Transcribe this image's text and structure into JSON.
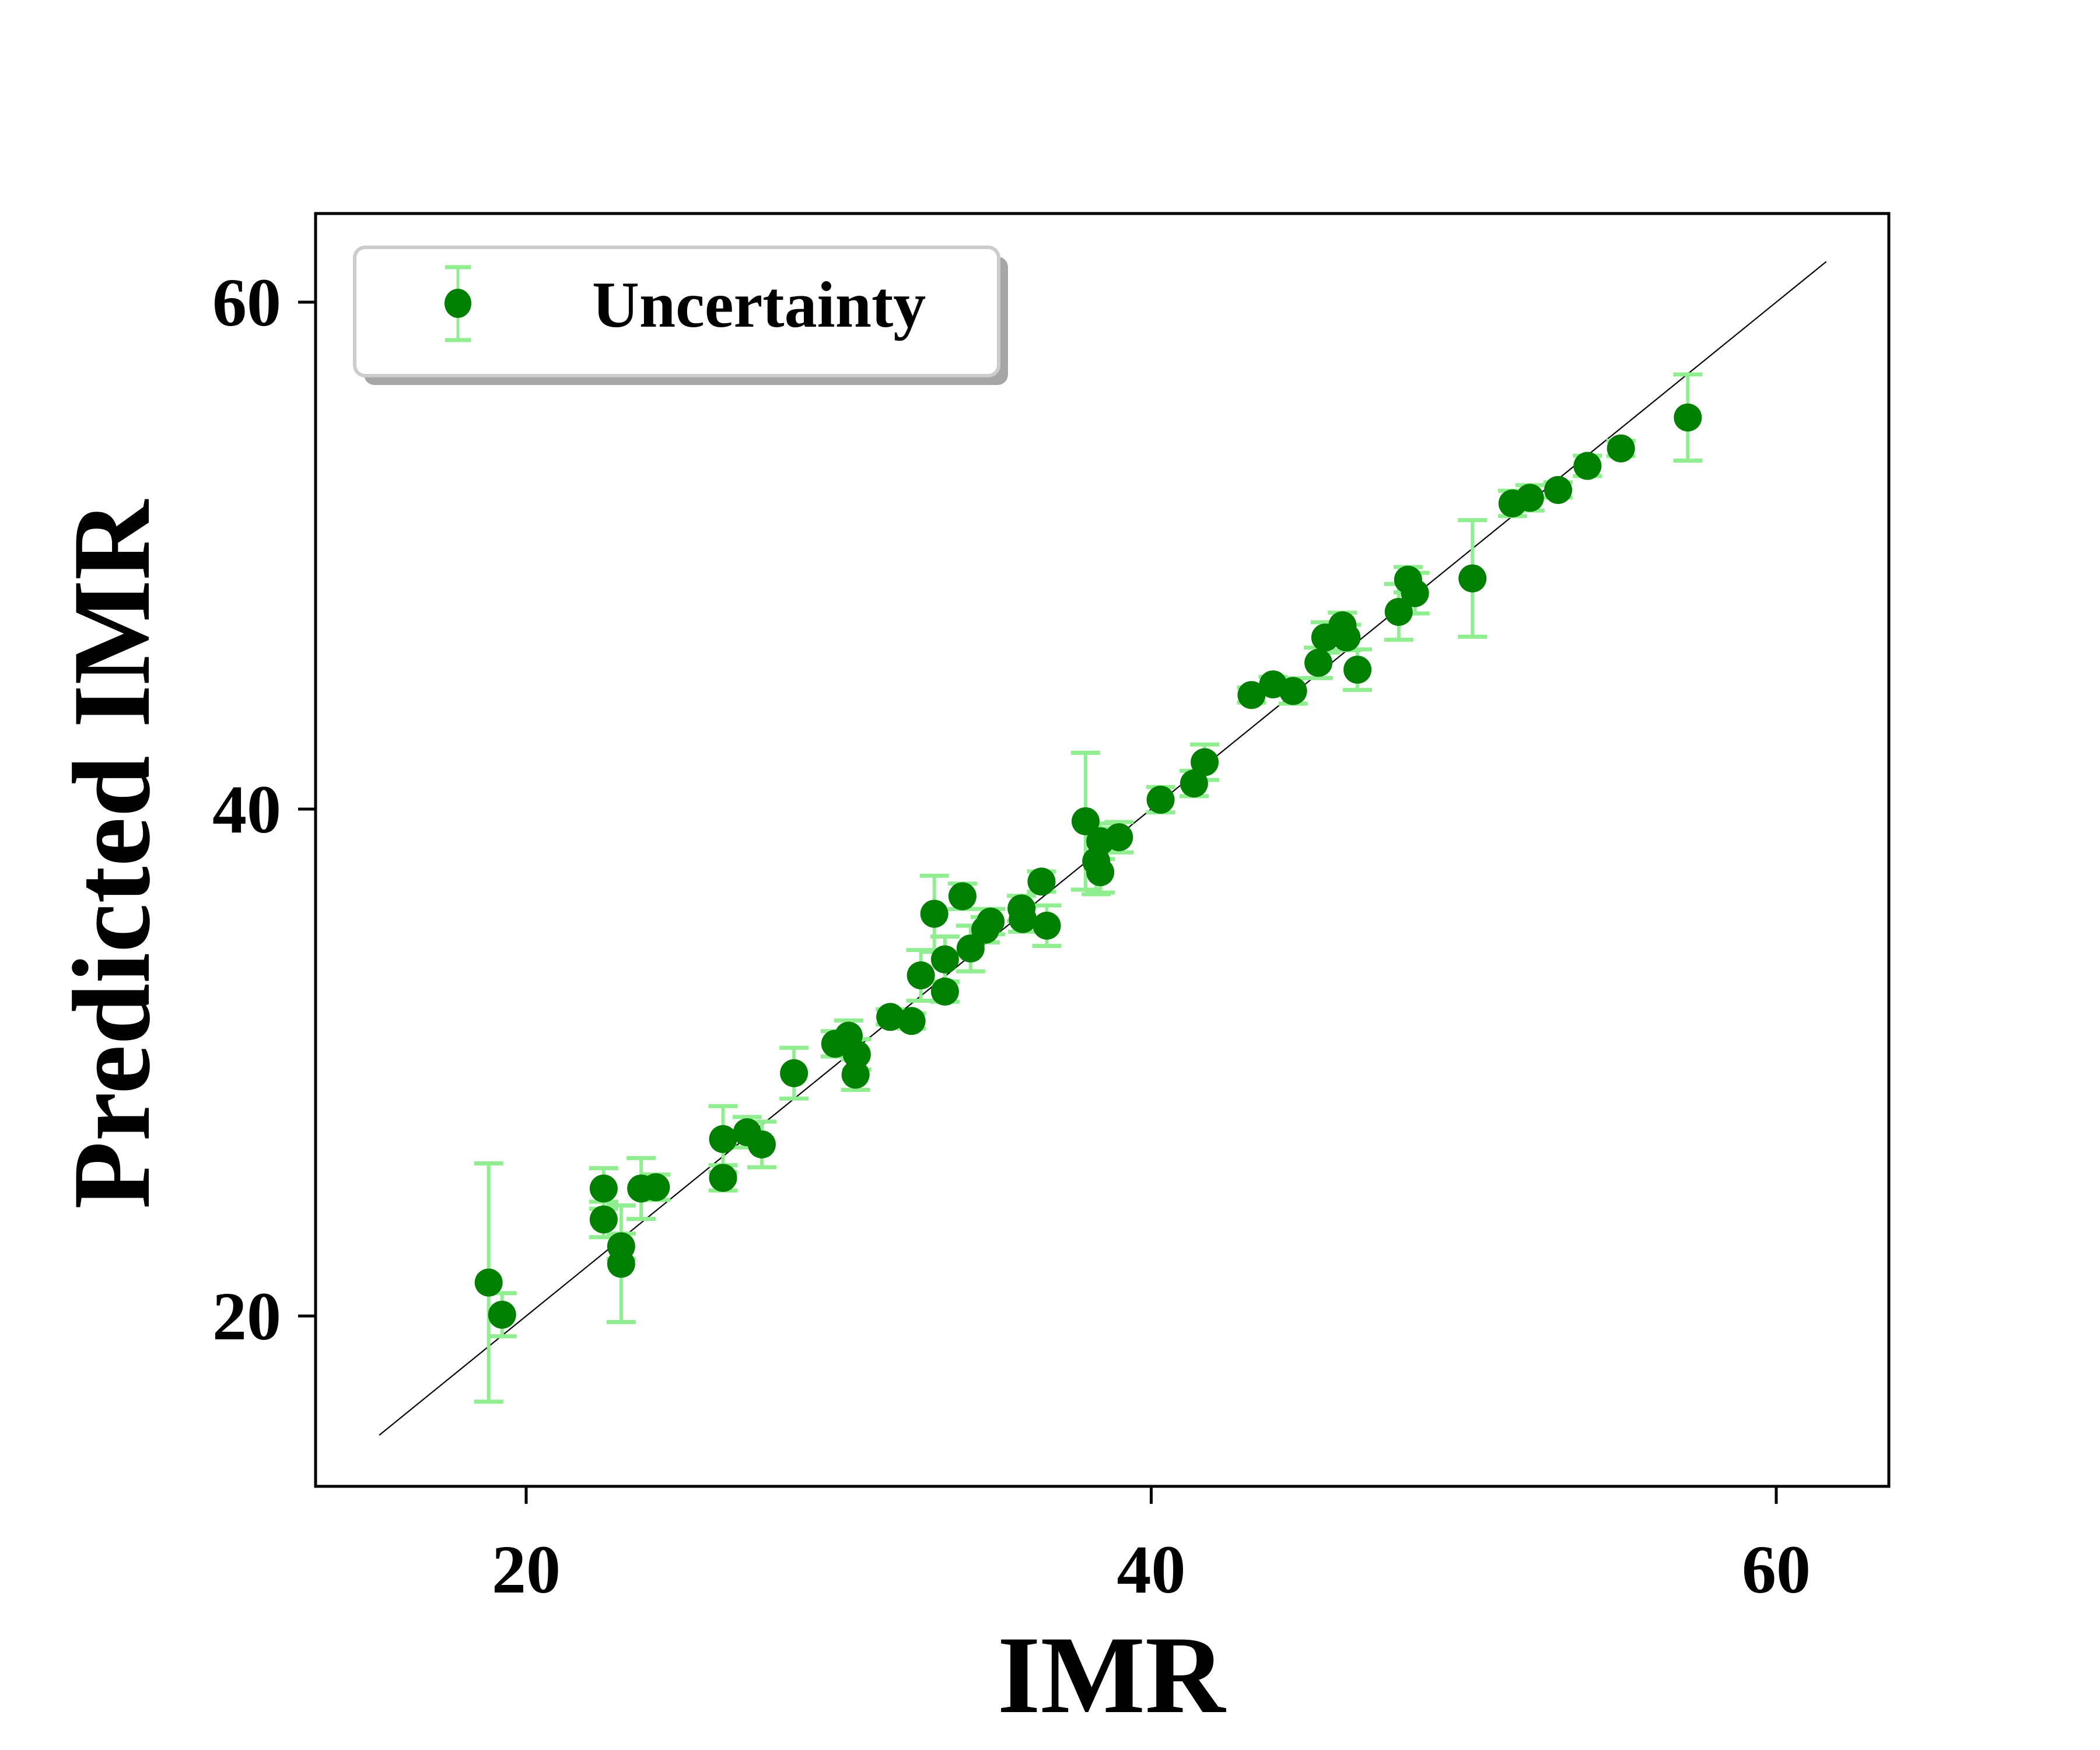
{
  "chart_data": {
    "type": "scatter",
    "title": "",
    "xlabel": "IMR",
    "ylabel": "Predicted IMR",
    "xlim": [
      13.2,
      63.6
    ],
    "ylim": [
      13.2,
      63.6
    ],
    "xticks": [
      20,
      40,
      60
    ],
    "yticks": [
      20,
      40,
      60
    ],
    "grid": false,
    "legend": {
      "position": "upper left",
      "entries": [
        "Uncertainty"
      ]
    },
    "reference_line": {
      "type": "y=x",
      "from": 15.3,
      "to": 61.6,
      "color": "#000000"
    },
    "marker_color": "#008000",
    "errorbar_color": "#90ee90",
    "series": [
      {
        "name": "Uncertainty",
        "points": [
          {
            "x": 18.8,
            "y": 21.32,
            "err": 4.7
          },
          {
            "x": 19.23,
            "y": 20.05,
            "err": 0.85
          },
          {
            "x": 22.48,
            "y": 25.03,
            "err": 0.8
          },
          {
            "x": 22.48,
            "y": 23.81,
            "err": 0.7
          },
          {
            "x": 23.04,
            "y": 22.75,
            "err": 0.5
          },
          {
            "x": 23.04,
            "y": 22.06,
            "err": 2.3
          },
          {
            "x": 23.68,
            "y": 25.03,
            "err": 1.2
          },
          {
            "x": 24.15,
            "y": 25.08,
            "err": 0.5
          },
          {
            "x": 26.3,
            "y": 26.98,
            "err": 1.3
          },
          {
            "x": 26.3,
            "y": 25.45,
            "err": 0.5
          },
          {
            "x": 27.07,
            "y": 27.25,
            "err": 0.6
          },
          {
            "x": 27.54,
            "y": 26.77,
            "err": 0.9
          },
          {
            "x": 28.57,
            "y": 29.58,
            "err": 1.0
          },
          {
            "x": 29.89,
            "y": 30.74,
            "err": 0.5
          },
          {
            "x": 30.32,
            "y": 31.06,
            "err": 0.6
          },
          {
            "x": 30.58,
            "y": 30.32,
            "err": 0.6
          },
          {
            "x": 30.54,
            "y": 29.52,
            "err": 0.6
          },
          {
            "x": 31.65,
            "y": 31.8,
            "err": 0.3
          },
          {
            "x": 32.33,
            "y": 31.64,
            "err": 0.3
          },
          {
            "x": 32.63,
            "y": 33.44,
            "err": 1.0
          },
          {
            "x": 33.06,
            "y": 35.87,
            "err": 1.5
          },
          {
            "x": 33.4,
            "y": 34.07,
            "err": 0.9
          },
          {
            "x": 33.4,
            "y": 32.8,
            "err": 0.4
          },
          {
            "x": 33.96,
            "y": 36.56,
            "err": 0.5
          },
          {
            "x": 34.22,
            "y": 34.5,
            "err": 0.9
          },
          {
            "x": 34.69,
            "y": 35.24,
            "err": 0.5
          },
          {
            "x": 34.86,
            "y": 35.56,
            "err": 0.5
          },
          {
            "x": 35.85,
            "y": 36.08,
            "err": 0.5
          },
          {
            "x": 35.89,
            "y": 35.66,
            "err": 0.5
          },
          {
            "x": 36.49,
            "y": 37.14,
            "err": 0.4
          },
          {
            "x": 36.66,
            "y": 35.4,
            "err": 0.8
          },
          {
            "x": 37.9,
            "y": 39.52,
            "err": 2.7
          },
          {
            "x": 38.24,
            "y": 37.94,
            "err": 1.3
          },
          {
            "x": 38.37,
            "y": 37.51,
            "err": 0.8
          },
          {
            "x": 38.37,
            "y": 38.73,
            "err": 0.7
          },
          {
            "x": 38.97,
            "y": 38.89,
            "err": 0.6
          },
          {
            "x": 40.3,
            "y": 40.37,
            "err": 0.5
          },
          {
            "x": 41.37,
            "y": 41.01,
            "err": 0.5
          },
          {
            "x": 41.71,
            "y": 41.85,
            "err": 0.7
          },
          {
            "x": 43.21,
            "y": 44.5,
            "err": 0.3
          },
          {
            "x": 43.9,
            "y": 44.92,
            "err": 0.3
          },
          {
            "x": 44.54,
            "y": 44.66,
            "err": 0.5
          },
          {
            "x": 45.35,
            "y": 45.77,
            "err": 0.6
          },
          {
            "x": 45.57,
            "y": 46.77,
            "err": 0.6
          },
          {
            "x": 46.12,
            "y": 47.25,
            "err": 0.5
          },
          {
            "x": 46.25,
            "y": 46.77,
            "err": 0.5
          },
          {
            "x": 46.6,
            "y": 45.5,
            "err": 0.8
          },
          {
            "x": 47.92,
            "y": 47.78,
            "err": 1.1
          },
          {
            "x": 48.22,
            "y": 49.05,
            "err": 0.5
          },
          {
            "x": 48.44,
            "y": 48.52,
            "err": 0.8
          },
          {
            "x": 50.28,
            "y": 49.1,
            "err": 2.3
          },
          {
            "x": 51.56,
            "y": 52.06,
            "err": 0.5
          },
          {
            "x": 52.12,
            "y": 52.28,
            "err": 0.5
          },
          {
            "x": 53.02,
            "y": 52.59,
            "err": 0.3
          },
          {
            "x": 53.96,
            "y": 53.54,
            "err": 0.4
          },
          {
            "x": 55.03,
            "y": 54.23,
            "err": 0.3
          },
          {
            "x": 57.17,
            "y": 55.45,
            "err": 1.7
          }
        ]
      }
    ]
  },
  "axes": {
    "x_title": "IMR",
    "y_title": "Predicted IMR",
    "x_ticks": [
      "20",
      "40",
      "60"
    ],
    "y_ticks": [
      "20",
      "40",
      "60"
    ]
  },
  "legend": {
    "label": "Uncertainty"
  }
}
